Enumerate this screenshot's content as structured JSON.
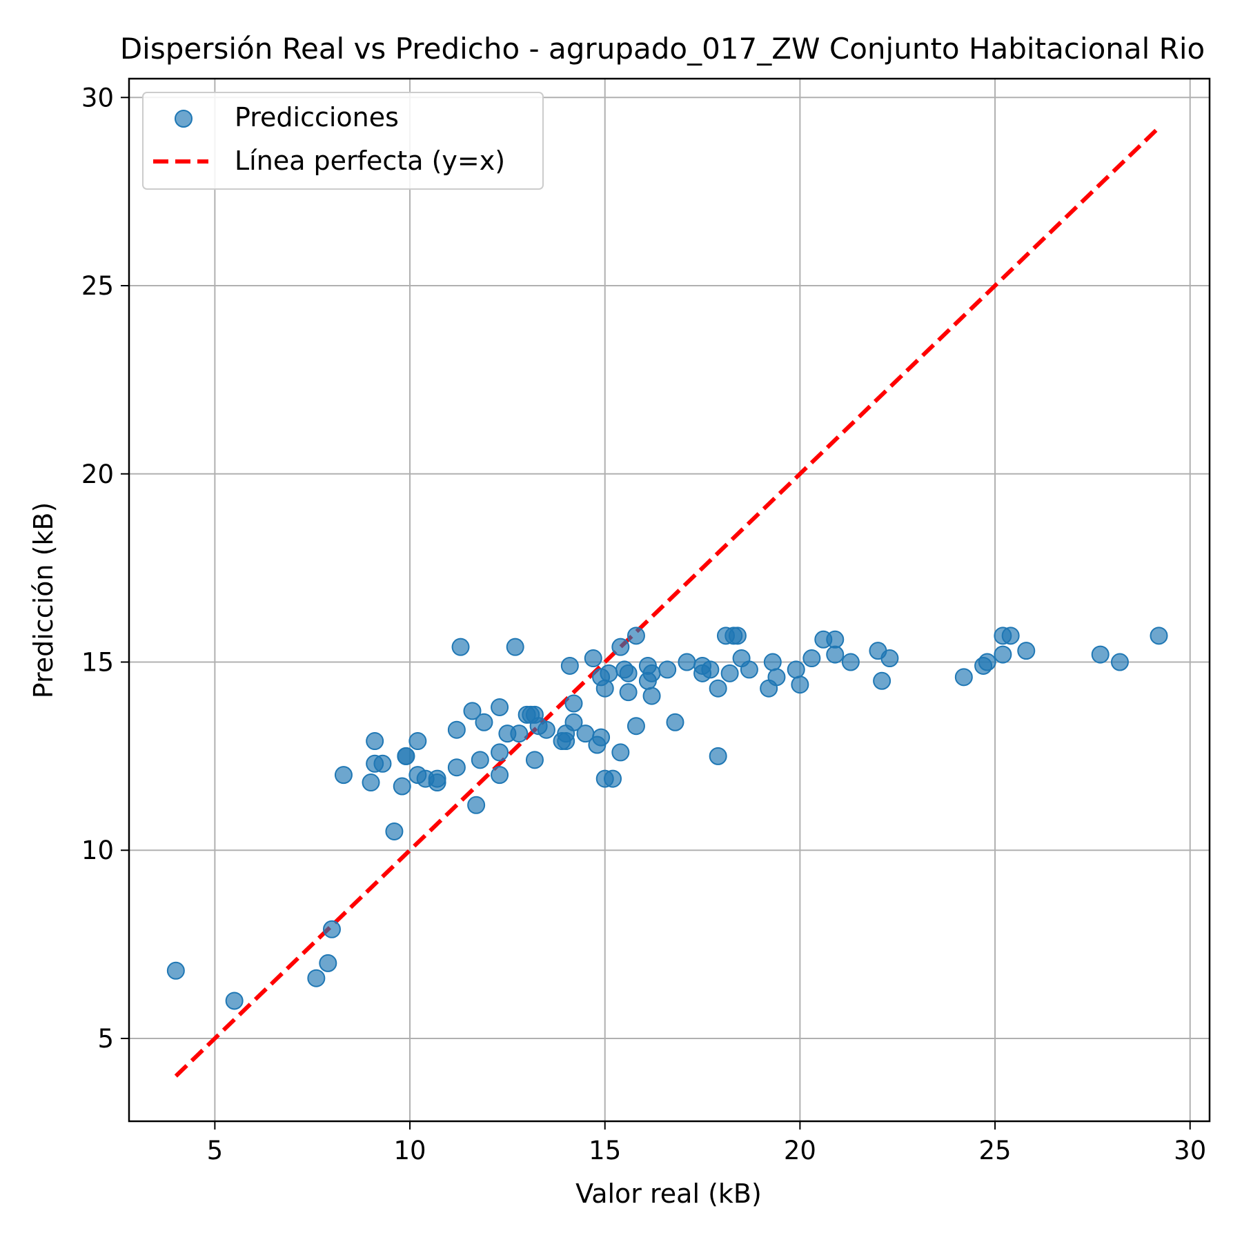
{
  "chart_data": {
    "type": "scatter",
    "title": "Dispersión Real vs Predicho - agrupado_017_ZW Conjunto Habitacional Rio",
    "xlabel": "Valor real (kB)",
    "ylabel": "Predicción (kB)",
    "xlim": [
      2.8,
      30.5
    ],
    "ylim": [
      2.8,
      30.5
    ],
    "xticks": [
      5,
      10,
      15,
      20,
      25,
      30
    ],
    "yticks": [
      5,
      10,
      15,
      20,
      25,
      30
    ],
    "grid": true,
    "legend_position": "top-left",
    "colors": {
      "points": "#1f77b4",
      "points_edge": "#1f77b4",
      "line": "#ff0000",
      "grid": "#b0b0b0"
    },
    "series": [
      {
        "name": "Predicciones",
        "kind": "scatter",
        "points": [
          [
            4.0,
            6.8
          ],
          [
            5.5,
            6.0
          ],
          [
            7.6,
            6.6
          ],
          [
            7.9,
            7.0
          ],
          [
            8.0,
            7.9
          ],
          [
            8.3,
            12.0
          ],
          [
            9.0,
            11.8
          ],
          [
            9.1,
            12.9
          ],
          [
            9.1,
            12.3
          ],
          [
            9.3,
            12.3
          ],
          [
            9.6,
            10.5
          ],
          [
            9.8,
            11.7
          ],
          [
            9.9,
            12.5
          ],
          [
            9.9,
            12.5
          ],
          [
            10.2,
            12.0
          ],
          [
            10.2,
            12.9
          ],
          [
            10.4,
            11.9
          ],
          [
            10.7,
            11.9
          ],
          [
            10.7,
            11.8
          ],
          [
            11.2,
            12.2
          ],
          [
            11.2,
            13.2
          ],
          [
            11.3,
            15.4
          ],
          [
            11.6,
            13.7
          ],
          [
            11.7,
            11.2
          ],
          [
            11.8,
            12.4
          ],
          [
            11.9,
            13.4
          ],
          [
            12.3,
            13.8
          ],
          [
            12.3,
            12.6
          ],
          [
            12.3,
            12.0
          ],
          [
            12.5,
            13.1
          ],
          [
            12.7,
            15.4
          ],
          [
            12.8,
            13.1
          ],
          [
            13.0,
            13.6
          ],
          [
            13.1,
            13.6
          ],
          [
            13.2,
            12.4
          ],
          [
            13.2,
            13.6
          ],
          [
            13.3,
            13.3
          ],
          [
            13.5,
            13.2
          ],
          [
            13.9,
            12.9
          ],
          [
            14.0,
            13.1
          ],
          [
            14.0,
            12.9
          ],
          [
            14.1,
            14.9
          ],
          [
            14.2,
            13.9
          ],
          [
            14.2,
            13.4
          ],
          [
            14.5,
            13.1
          ],
          [
            14.7,
            15.1
          ],
          [
            14.8,
            12.8
          ],
          [
            14.9,
            14.6
          ],
          [
            14.9,
            13.0
          ],
          [
            15.0,
            14.3
          ],
          [
            15.0,
            11.9
          ],
          [
            15.1,
            14.7
          ],
          [
            15.2,
            11.9
          ],
          [
            15.4,
            12.6
          ],
          [
            15.4,
            15.4
          ],
          [
            15.5,
            14.8
          ],
          [
            15.6,
            14.2
          ],
          [
            15.6,
            14.7
          ],
          [
            15.8,
            13.3
          ],
          [
            15.8,
            15.7
          ],
          [
            16.1,
            14.9
          ],
          [
            16.1,
            14.5
          ],
          [
            16.2,
            14.7
          ],
          [
            16.2,
            14.1
          ],
          [
            16.6,
            14.8
          ],
          [
            16.8,
            13.4
          ],
          [
            17.1,
            15.0
          ],
          [
            17.5,
            14.9
          ],
          [
            17.5,
            14.7
          ],
          [
            17.7,
            14.8
          ],
          [
            17.9,
            14.3
          ],
          [
            17.9,
            12.5
          ],
          [
            18.1,
            15.7
          ],
          [
            18.2,
            14.7
          ],
          [
            18.3,
            15.7
          ],
          [
            18.4,
            15.7
          ],
          [
            18.5,
            15.1
          ],
          [
            18.7,
            14.8
          ],
          [
            19.2,
            14.3
          ],
          [
            19.3,
            15.0
          ],
          [
            19.4,
            14.6
          ],
          [
            19.9,
            14.8
          ],
          [
            20.0,
            14.4
          ],
          [
            20.3,
            15.1
          ],
          [
            20.6,
            15.6
          ],
          [
            20.9,
            15.6
          ],
          [
            20.9,
            15.2
          ],
          [
            21.3,
            15.0
          ],
          [
            22.0,
            15.3
          ],
          [
            22.1,
            14.5
          ],
          [
            22.3,
            15.1
          ],
          [
            24.2,
            14.6
          ],
          [
            24.7,
            14.9
          ],
          [
            24.8,
            15.0
          ],
          [
            25.2,
            15.7
          ],
          [
            25.2,
            15.2
          ],
          [
            25.4,
            15.7
          ],
          [
            25.8,
            15.3
          ],
          [
            27.7,
            15.2
          ],
          [
            28.2,
            15.0
          ],
          [
            29.2,
            15.7
          ]
        ]
      },
      {
        "name": "Línea perfecta (y=x)",
        "kind": "line",
        "style": "dashed",
        "points": [
          [
            4.0,
            4.0
          ],
          [
            29.2,
            29.2
          ]
        ]
      }
    ]
  }
}
